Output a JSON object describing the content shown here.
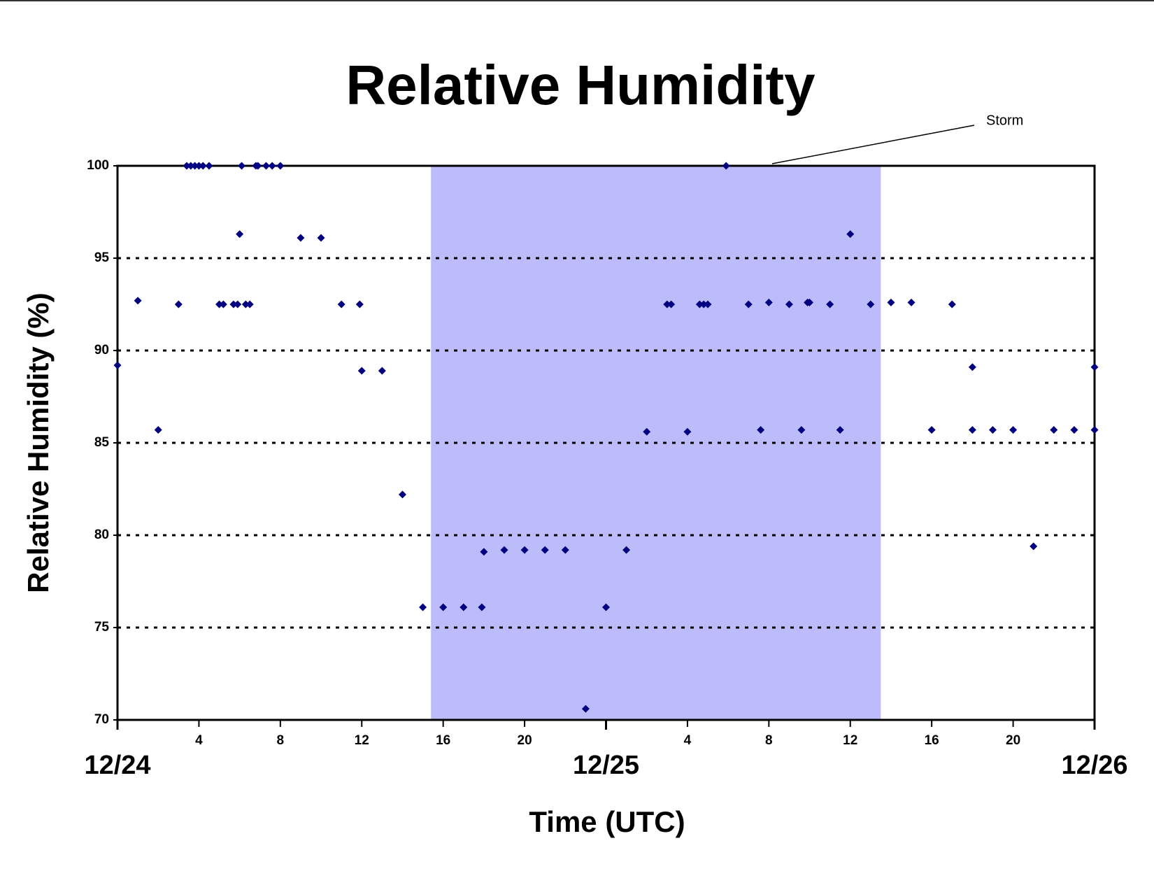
{
  "chart_data": {
    "type": "scatter",
    "title": "Relative Humidity",
    "xlabel": "Time (UTC)",
    "ylabel": "Relative Humidity (%)",
    "annotation": "Storm",
    "shaded_span": [
      15.4,
      37.5
    ],
    "shade_color": "#bcbcfa",
    "color": "#000080",
    "grid": true,
    "xlim": [
      0,
      48
    ],
    "ylim": [
      70,
      100
    ],
    "yticks": [
      70,
      75,
      80,
      85,
      90,
      95,
      100
    ],
    "xticks": [
      4,
      8,
      12,
      16,
      20,
      {
        "value": 28,
        "label": "4"
      },
      {
        "value": 32,
        "label": "8"
      },
      {
        "value": 36,
        "label": "12"
      },
      {
        "value": 40,
        "label": "16"
      },
      {
        "value": 44,
        "label": "20"
      }
    ],
    "xticks_major": [
      {
        "value": 0,
        "label": "12/24"
      },
      {
        "value": 24,
        "label": "12/25"
      },
      {
        "value": 48,
        "label": "12/26"
      }
    ],
    "x": [
      0,
      1,
      2,
      3,
      3.4,
      3.6,
      3.8,
      4,
      4.2,
      4.5,
      5,
      5.2,
      5.7,
      5.9,
      6,
      6.1,
      6.3,
      6.5,
      6.8,
      6.9,
      7.3,
      7.6,
      8,
      9,
      10,
      11,
      11.9,
      12,
      13,
      14,
      15,
      16,
      17,
      17.9,
      18,
      19,
      20,
      21,
      22,
      23,
      24,
      25,
      26,
      27,
      27.2,
      28,
      28.6,
      28.8,
      29,
      29.9,
      31,
      31.6,
      32,
      33,
      33.6,
      33.9,
      34,
      35,
      35.5,
      36,
      37,
      38,
      39,
      40,
      41,
      42,
      42,
      43,
      44,
      45,
      46,
      47,
      48,
      48
    ],
    "values": [
      89.2,
      92.7,
      85.7,
      92.5,
      100,
      100,
      100,
      100,
      100,
      100,
      92.5,
      92.5,
      92.5,
      92.5,
      96.3,
      100,
      92.5,
      92.5,
      100,
      100,
      100,
      100,
      100,
      96.1,
      96.1,
      92.5,
      92.5,
      88.9,
      88.9,
      82.2,
      76.1,
      76.1,
      76.1,
      76.1,
      79.1,
      79.2,
      79.2,
      79.2,
      79.2,
      70.6,
      76.1,
      79.2,
      85.6,
      92.5,
      92.5,
      85.6,
      92.5,
      92.5,
      92.5,
      100,
      92.5,
      85.7,
      92.6,
      92.5,
      85.7,
      92.6,
      92.6,
      92.5,
      85.7,
      96.3,
      92.5,
      92.6,
      92.6,
      85.7,
      92.5,
      89.1,
      85.7,
      85.7,
      85.7,
      79.4,
      85.7,
      85.7,
      85.7,
      89.1
    ]
  }
}
